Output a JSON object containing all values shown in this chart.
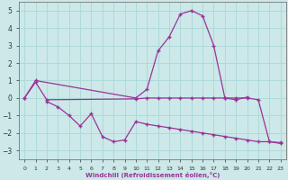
{
  "x": [
    0,
    1,
    2,
    3,
    4,
    5,
    6,
    7,
    8,
    9,
    10,
    11,
    12,
    13,
    14,
    15,
    16,
    17,
    18,
    19,
    20,
    21,
    22,
    23
  ],
  "y_curve": [
    0.0,
    1.0,
    null,
    null,
    null,
    null,
    null,
    null,
    null,
    null,
    0.0,
    0.5,
    2.7,
    3.5,
    4.8,
    5.0,
    4.7,
    3.0,
    0.0,
    -0.1,
    0.05,
    null,
    null,
    null
  ],
  "y_flat": [
    0.0,
    0.9,
    -0.1,
    null,
    null,
    null,
    null,
    null,
    null,
    null,
    -0.05,
    0.0,
    0.0,
    0.0,
    0.0,
    0.0,
    0.0,
    0.0,
    0.0,
    0.0,
    0.0,
    -0.1,
    -2.5,
    -2.6
  ],
  "y_zigzag": [
    null,
    null,
    -0.2,
    -0.5,
    -1.0,
    -1.6,
    -0.9,
    -2.2,
    -2.5,
    -2.4,
    -1.35,
    -1.5,
    -1.6,
    -1.7,
    -1.8,
    -1.9,
    -2.0,
    -2.1,
    -2.2,
    -2.3,
    -2.4,
    -2.5,
    -2.5,
    -2.55
  ],
  "color": "#993399",
  "bg_color": "#cce8e8",
  "grid_color": "#aad8d8",
  "ylim": [
    -3.5,
    5.5
  ],
  "xlim": [
    -0.5,
    23.5
  ],
  "yticks": [
    -3,
    -2,
    -1,
    0,
    1,
    2,
    3,
    4,
    5
  ],
  "xticks": [
    0,
    1,
    2,
    3,
    4,
    5,
    6,
    7,
    8,
    9,
    10,
    11,
    12,
    13,
    14,
    15,
    16,
    17,
    18,
    19,
    20,
    21,
    22,
    23
  ],
  "xlabel": "Windchill (Refroidissement éolien,°C)",
  "line_width": 0.9,
  "marker": "+",
  "marker_size": 3.5
}
